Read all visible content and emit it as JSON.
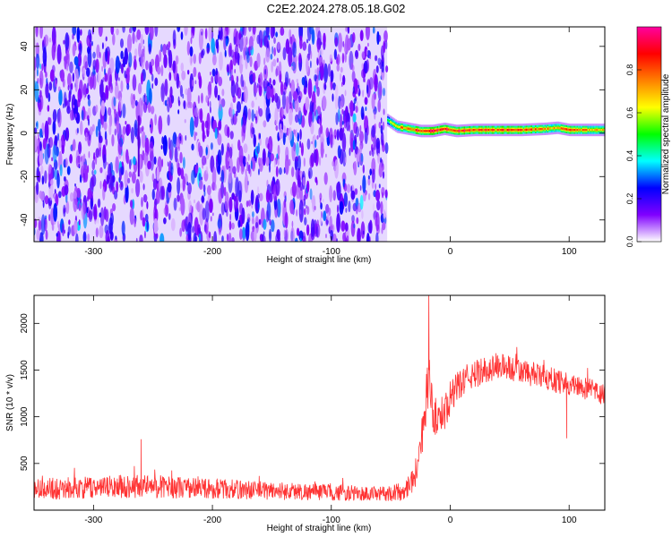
{
  "page_title": "C2E2.2024.278.05.18.G02",
  "chart_data": [
    {
      "type": "heatmap",
      "title": "C2E2.2024.278.05.18.G02",
      "xlabel": "Height of straight line (km)",
      "ylabel": "Frequency (Hz)",
      "xlim": [
        -350,
        130
      ],
      "ylim": [
        -50,
        49
      ],
      "x_ticks": [
        -300,
        -200,
        -100,
        0,
        100
      ],
      "y_ticks": [
        -40,
        -20,
        0,
        20,
        40
      ],
      "colorbar": {
        "label": "Normalized spectral amplitude",
        "range": [
          0,
          1
        ],
        "ticks": [
          0.0,
          0.2,
          0.4,
          0.6,
          0.8
        ],
        "tick_labels": [
          "0.0",
          "0.2",
          "0.4",
          "0.6",
          "0.8"
        ],
        "colors": [
          "#ffffff",
          "#8000ff",
          "#0000ff",
          "#00ffff",
          "#00ff00",
          "#ffff00",
          "#ff8000",
          "#ff0000",
          "#ff00a0"
        ]
      },
      "noise_region": {
        "x": [
          -350,
          -53
        ],
        "y": [
          -50,
          49
        ],
        "amplitude": [
          0.05,
          0.25
        ]
      },
      "signal_track": {
        "x": [
          -53,
          -45,
          -35,
          -25,
          -15,
          -5,
          5,
          20,
          40,
          60,
          80,
          90,
          100,
          115,
          130
        ],
        "frequency": [
          6,
          3,
          2,
          1,
          1,
          2,
          1,
          1.5,
          1.5,
          1.5,
          2,
          2.5,
          1.5,
          1.5,
          1.5
        ],
        "amplitude": [
          0.5,
          0.7,
          0.8,
          0.9,
          0.95,
          0.85,
          0.9,
          0.85,
          0.8,
          0.8,
          0.75,
          0.7,
          0.8,
          0.75,
          0.7
        ]
      }
    },
    {
      "type": "line",
      "xlabel": "Height of straight line (km)",
      "ylabel": "SNR (10 * v/v)",
      "xlim": [
        -350,
        130
      ],
      "ylim": [
        0,
        2300
      ],
      "x_ticks": [
        -300,
        -200,
        -100,
        0,
        100
      ],
      "y_ticks": [
        500,
        1000,
        1500,
        2000
      ],
      "series": [
        {
          "color": "#ff3333",
          "x": [
            -350,
            -300,
            -260,
            -200,
            -150,
            -100,
            -60,
            -40,
            -30,
            -25,
            -21,
            -18,
            -16,
            -14,
            -10,
            -5,
            0,
            10,
            20,
            30,
            40,
            50,
            60,
            80,
            100,
            115,
            130
          ],
          "mean": [
            230,
            240,
            260,
            230,
            210,
            190,
            170,
            200,
            350,
            700,
            1050,
            1500,
            1200,
            1000,
            1000,
            1050,
            1200,
            1380,
            1450,
            1500,
            1550,
            1520,
            1480,
            1420,
            1350,
            1300,
            1230
          ],
          "spread": [
            120,
            120,
            130,
            110,
            100,
            90,
            80,
            100,
            150,
            200,
            250,
            300,
            250,
            220,
            200,
            200,
            180,
            160,
            150,
            150,
            150,
            140,
            140,
            130,
            130,
            120,
            120
          ]
        }
      ],
      "peaks": [
        {
          "x": -260,
          "y": 760
        },
        {
          "x": -18,
          "y": 2300
        },
        {
          "x": 98,
          "y": 770
        }
      ]
    }
  ]
}
